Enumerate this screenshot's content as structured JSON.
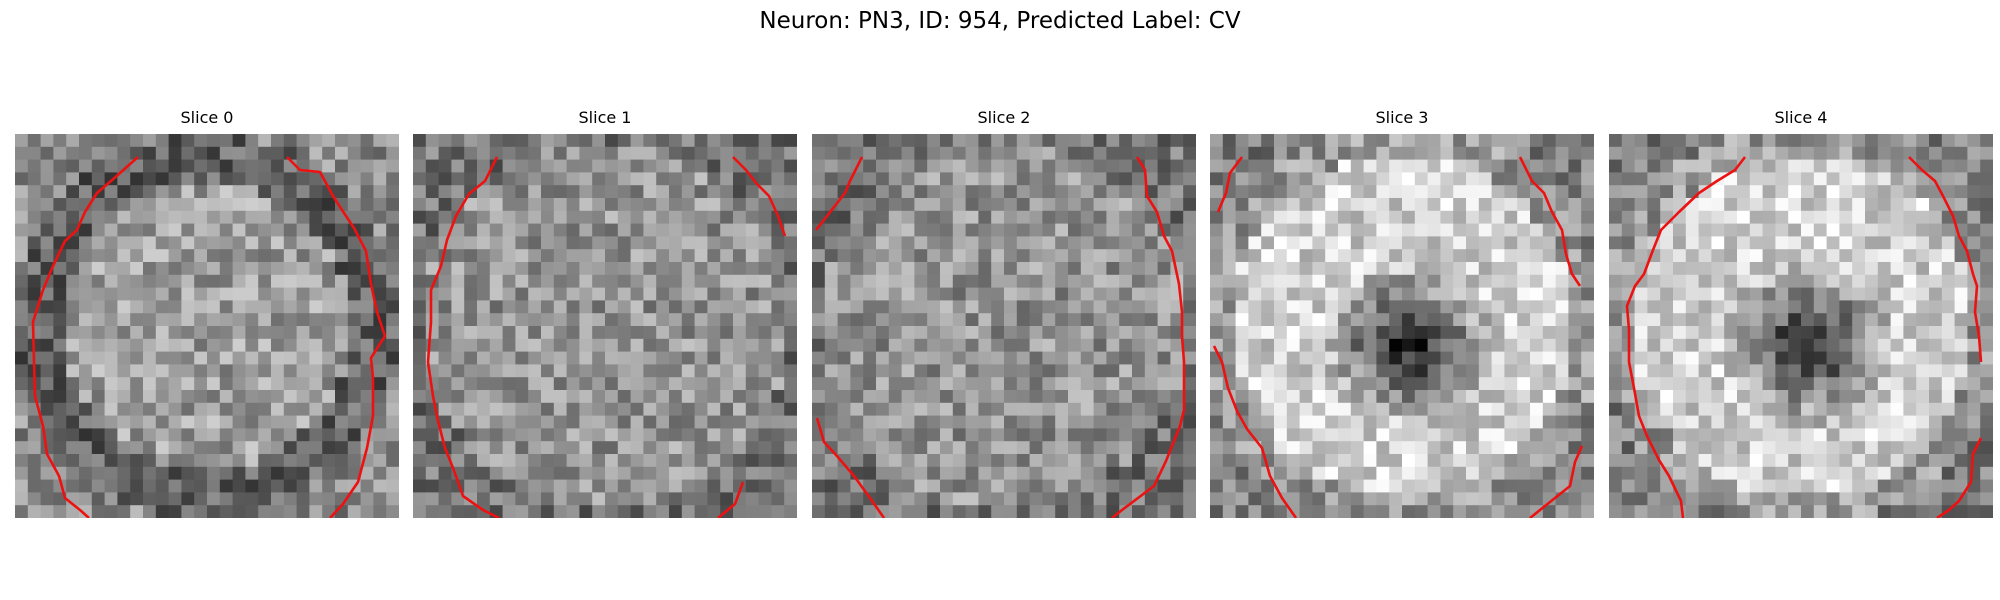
{
  "title": "Neuron: PN3, ID: 954, Predicted Label: CV",
  "slices": [
    {
      "label": "Slice 0",
      "pattern": "ring"
    },
    {
      "label": "Slice 1",
      "pattern": "noise"
    },
    {
      "label": "Slice 2",
      "pattern": "noise"
    },
    {
      "label": "Slice 3",
      "pattern": "bright-dark-center"
    },
    {
      "label": "Slice 4",
      "pattern": "bright-dark-center"
    }
  ],
  "colors": {
    "contour": "#ee1111",
    "background": "#ffffff"
  }
}
